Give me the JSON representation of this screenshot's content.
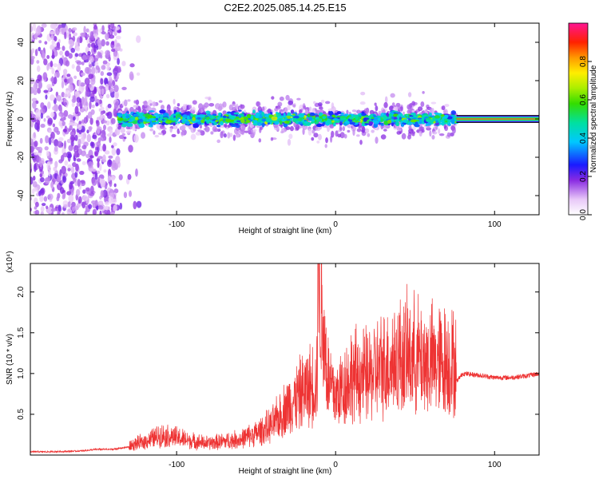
{
  "title": "C2E2.2025.085.14.25.E15",
  "chart_data": [
    {
      "type": "heatmap",
      "xlabel": "Height of straight line (km)",
      "ylabel": "Frequency (Hz)",
      "xlim": [
        -192,
        128
      ],
      "ylim": [
        -50,
        50
      ],
      "xticks": [
        -100,
        0,
        100
      ],
      "xtick_labels": [
        "-100",
        "0",
        "100"
      ],
      "yticks": [
        -40,
        -20,
        0,
        20,
        40
      ],
      "ytick_labels": [
        "-40",
        "-20",
        "0",
        "20",
        "40"
      ],
      "colorbar": {
        "label": "Normalized spectral amplitude",
        "range": [
          0.0,
          1.0
        ],
        "ticks": [
          0.0,
          0.2,
          0.4,
          0.6,
          0.8
        ],
        "tick_labels": [
          "0.0",
          "0.2",
          "0.4",
          "0.6",
          "0.8"
        ]
      },
      "regions": [
        {
          "x": [
            -192,
            -136
          ],
          "description_level": 0.12,
          "freq_spread": 50
        },
        {
          "x": [
            -136,
            76
          ],
          "description_level": 0.35,
          "freq_spread": 10
        },
        {
          "x": [
            76,
            128
          ],
          "description_level": 0.95,
          "freq_spread": 2
        }
      ]
    },
    {
      "type": "line",
      "xlabel": "Height of straight line (km)",
      "ylabel": "SNR (10 * v/v)",
      "multiplier": "(x10⁴)",
      "xlim": [
        -192,
        128
      ],
      "ylim": [
        0,
        2.35
      ],
      "xticks": [
        -100,
        0,
        100
      ],
      "xtick_labels": [
        "-100",
        "0",
        "100"
      ],
      "yticks": [
        0.5,
        1.0,
        1.5,
        2.0
      ],
      "ytick_labels": [
        "0.5",
        "1.0",
        "1.5",
        "2.0"
      ],
      "color": "#ee3333",
      "series": [
        {
          "x": [
            -192,
            -180,
            -160,
            -150,
            -140,
            -130,
            -120,
            -110,
            -100,
            -90,
            -80,
            -70,
            -60,
            -50,
            -40,
            -30,
            -20,
            -12,
            -10,
            -5,
            0,
            10,
            20,
            30,
            40,
            50,
            60,
            70,
            76,
            80,
            90,
            100,
            110,
            120,
            128
          ],
          "values": [
            0.03,
            0.03,
            0.04,
            0.06,
            0.06,
            0.09,
            0.14,
            0.2,
            0.18,
            0.14,
            0.12,
            0.14,
            0.16,
            0.22,
            0.3,
            0.5,
            0.65,
            0.75,
            1.7,
            0.8,
            0.6,
            0.8,
            0.8,
            0.9,
            1.0,
            1.0,
            0.95,
            0.95,
            0.9,
            1.0,
            0.98,
            0.95,
            0.95,
            0.97,
            1.0
          ]
        }
      ]
    }
  ]
}
